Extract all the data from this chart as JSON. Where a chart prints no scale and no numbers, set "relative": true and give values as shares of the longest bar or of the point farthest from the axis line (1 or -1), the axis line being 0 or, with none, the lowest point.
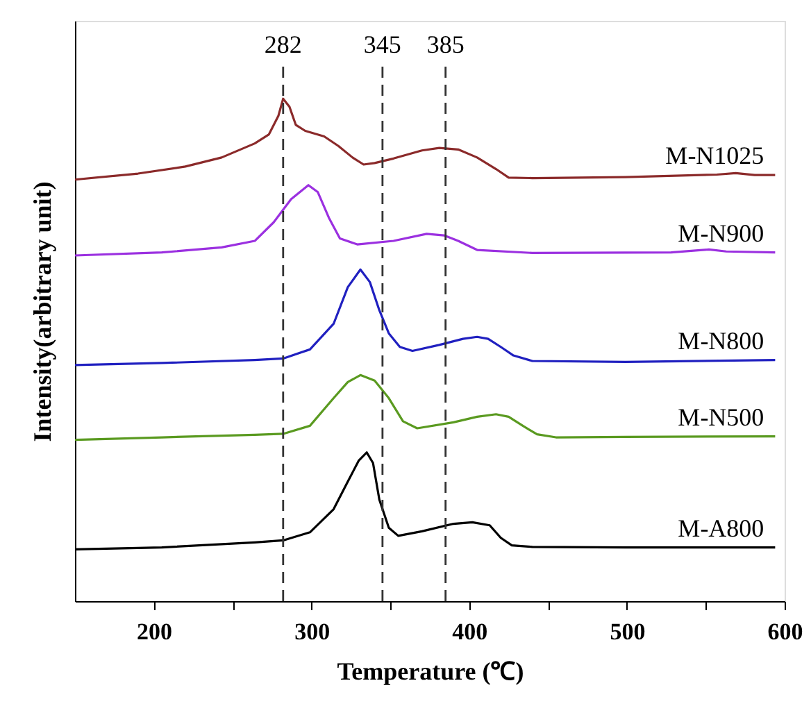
{
  "chart_data": {
    "type": "line",
    "relative": true,
    "xlabel": "Temperature (℃)",
    "ylabel": "Intensity(arbitrary unit)",
    "xlim": [
      150,
      600
    ],
    "xticks": [
      200,
      {
        "value": 250,
        "label": null
      },
      300,
      {
        "value": 350,
        "label": null
      },
      400,
      {
        "value": 450,
        "label": null
      },
      500,
      {
        "value": 550,
        "label": null
      },
      600
    ],
    "marker": "none",
    "line_style": "solid",
    "series": [
      {
        "name": "M-N1025",
        "color": "#8b2a2a",
        "x": [
          150,
          190,
          220,
          243,
          264,
          273,
          279,
          282,
          286,
          290,
          296,
          308,
          317,
          326,
          333,
          340,
          352,
          370,
          381,
          393,
          405,
          417,
          425,
          440,
          499,
          557,
          569,
          581,
          594
        ],
        "values": [
          0.839,
          0.851,
          0.865,
          0.883,
          0.911,
          0.929,
          0.966,
          1.0,
          0.984,
          0.948,
          0.936,
          0.925,
          0.906,
          0.883,
          0.869,
          0.872,
          0.881,
          0.897,
          0.902,
          0.899,
          0.883,
          0.86,
          0.843,
          0.842,
          0.844,
          0.849,
          0.852,
          0.848,
          0.848
        ]
      },
      {
        "name": "M-N900",
        "color": "#9b30e0",
        "x": [
          150,
          205,
          243,
          264,
          276,
          287,
          298,
          304,
          311,
          318,
          329,
          352,
          373,
          384,
          393,
          405,
          440,
          528,
          552,
          563,
          594
        ],
        "values": [
          0.688,
          0.694,
          0.704,
          0.717,
          0.754,
          0.8,
          0.828,
          0.814,
          0.763,
          0.722,
          0.71,
          0.717,
          0.731,
          0.728,
          0.717,
          0.699,
          0.693,
          0.694,
          0.7,
          0.696,
          0.694
        ]
      },
      {
        "name": "M-N800",
        "color": "#2020c0",
        "x": [
          150,
          205,
          264,
          282,
          299,
          314,
          323,
          331,
          337,
          343,
          349,
          356,
          364,
          381,
          396,
          405,
          412,
          420,
          428,
          440,
          499,
          594
        ],
        "values": [
          0.47,
          0.474,
          0.48,
          0.483,
          0.501,
          0.552,
          0.625,
          0.66,
          0.635,
          0.579,
          0.533,
          0.506,
          0.498,
          0.51,
          0.522,
          0.526,
          0.522,
          0.506,
          0.489,
          0.478,
          0.476,
          0.48
        ]
      },
      {
        "name": "M-N500",
        "color": "#5a9a20",
        "x": [
          150,
          205,
          264,
          282,
          299,
          314,
          323,
          331,
          340,
          349,
          358,
          367,
          390,
          405,
          417,
          425,
          434,
          443,
          455,
          499,
          594
        ],
        "values": [
          0.321,
          0.326,
          0.331,
          0.333,
          0.349,
          0.404,
          0.436,
          0.45,
          0.439,
          0.404,
          0.358,
          0.344,
          0.356,
          0.367,
          0.372,
          0.367,
          0.349,
          0.332,
          0.326,
          0.327,
          0.328
        ]
      },
      {
        "name": "M-A800",
        "color": "#000000",
        "x": [
          150,
          205,
          264,
          282,
          299,
          314,
          323,
          330,
          335,
          339,
          343,
          349,
          355,
          370,
          390,
          402,
          413,
          420,
          427,
          440,
          499,
          594
        ],
        "values": [
          0.103,
          0.107,
          0.117,
          0.121,
          0.137,
          0.183,
          0.238,
          0.28,
          0.296,
          0.275,
          0.202,
          0.146,
          0.13,
          0.139,
          0.154,
          0.157,
          0.151,
          0.126,
          0.111,
          0.108,
          0.107,
          0.107
        ]
      }
    ],
    "ref_lines": [
      {
        "axis": "x",
        "value": 282,
        "label": "282",
        "color": "#333333",
        "line_style": "dashed"
      },
      {
        "axis": "x",
        "value": 345,
        "label": "345",
        "color": "#333333",
        "line_style": "dashed"
      },
      {
        "axis": "x",
        "value": 385,
        "label": "385",
        "color": "#333333",
        "line_style": "dashed"
      }
    ]
  }
}
